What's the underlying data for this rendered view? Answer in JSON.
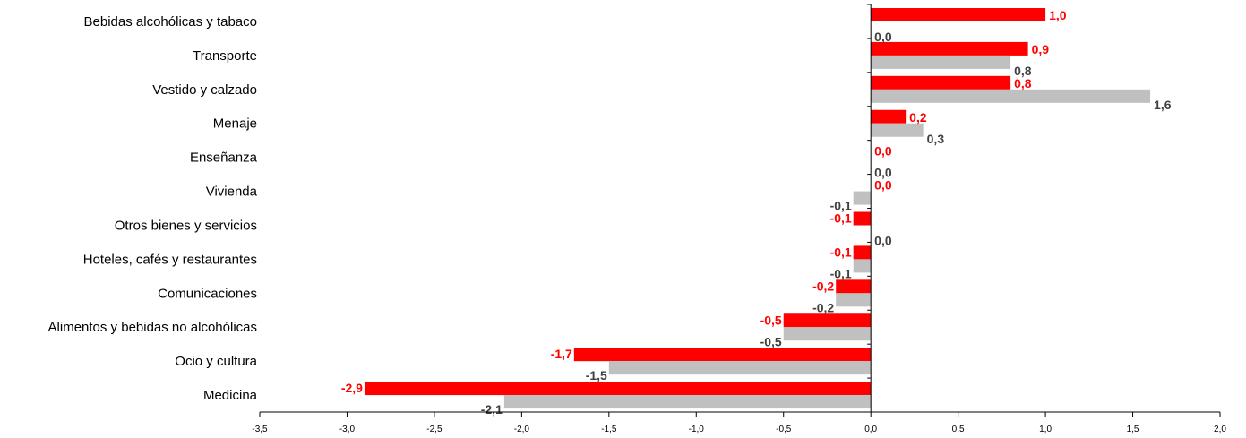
{
  "colors": {
    "series_a": "#ff0000",
    "series_b": "#c0c0c0",
    "label_a": "#ff0000",
    "label_b": "#404040",
    "axis": "#000000"
  },
  "chart_data": {
    "type": "bar",
    "orientation": "horizontal",
    "categories": [
      "Bebidas alcohólicas y tabaco",
      "Transporte",
      "Vestido y calzado",
      "Menaje",
      "Enseñanza",
      "Vivienda",
      "Otros bienes y servicios",
      "Hoteles, cafés y restaurantes",
      "Comunicaciones",
      "Alimentos y bebidas no alcohólicas",
      "Ocio y cultura",
      "Medicina"
    ],
    "series": [
      {
        "values": [
          1.0,
          0.9,
          0.8,
          0.2,
          0.0,
          0.0,
          -0.1,
          -0.1,
          -0.2,
          -0.5,
          -1.7,
          -2.9
        ],
        "labels": [
          "1,0",
          "0,9",
          "0,8",
          "0,2",
          "0,0",
          "0,0",
          "-0,1",
          "-0,1",
          "-0,2",
          "-0,5",
          "-1,7",
          "-2,9"
        ]
      },
      {
        "values": [
          0.0,
          0.8,
          1.6,
          0.3,
          0.0,
          -0.1,
          0.0,
          -0.1,
          -0.2,
          -0.5,
          -1.5,
          -2.1
        ],
        "labels": [
          "0,0",
          "0,8",
          "1,6",
          "0,3",
          "0,0",
          "-0,1",
          "0,0",
          "-0,1",
          "-0,2",
          "-0,5",
          "-1,5",
          "-2,1"
        ]
      }
    ],
    "xlim": [
      -3.5,
      2.0
    ],
    "xticks": [
      -3.5,
      -3.0,
      -2.5,
      -2.0,
      -1.5,
      -1.0,
      -0.5,
      0.0,
      0.5,
      1.0,
      1.5,
      2.0
    ],
    "xtick_labels": [
      "-3,5",
      "-3,0",
      "-2,5",
      "-2,0",
      "-1,5",
      "-1,0",
      "-0,5",
      "0,0",
      "0,5",
      "1,0",
      "1,5",
      "2,0"
    ],
    "grid": false,
    "legend": "none"
  }
}
